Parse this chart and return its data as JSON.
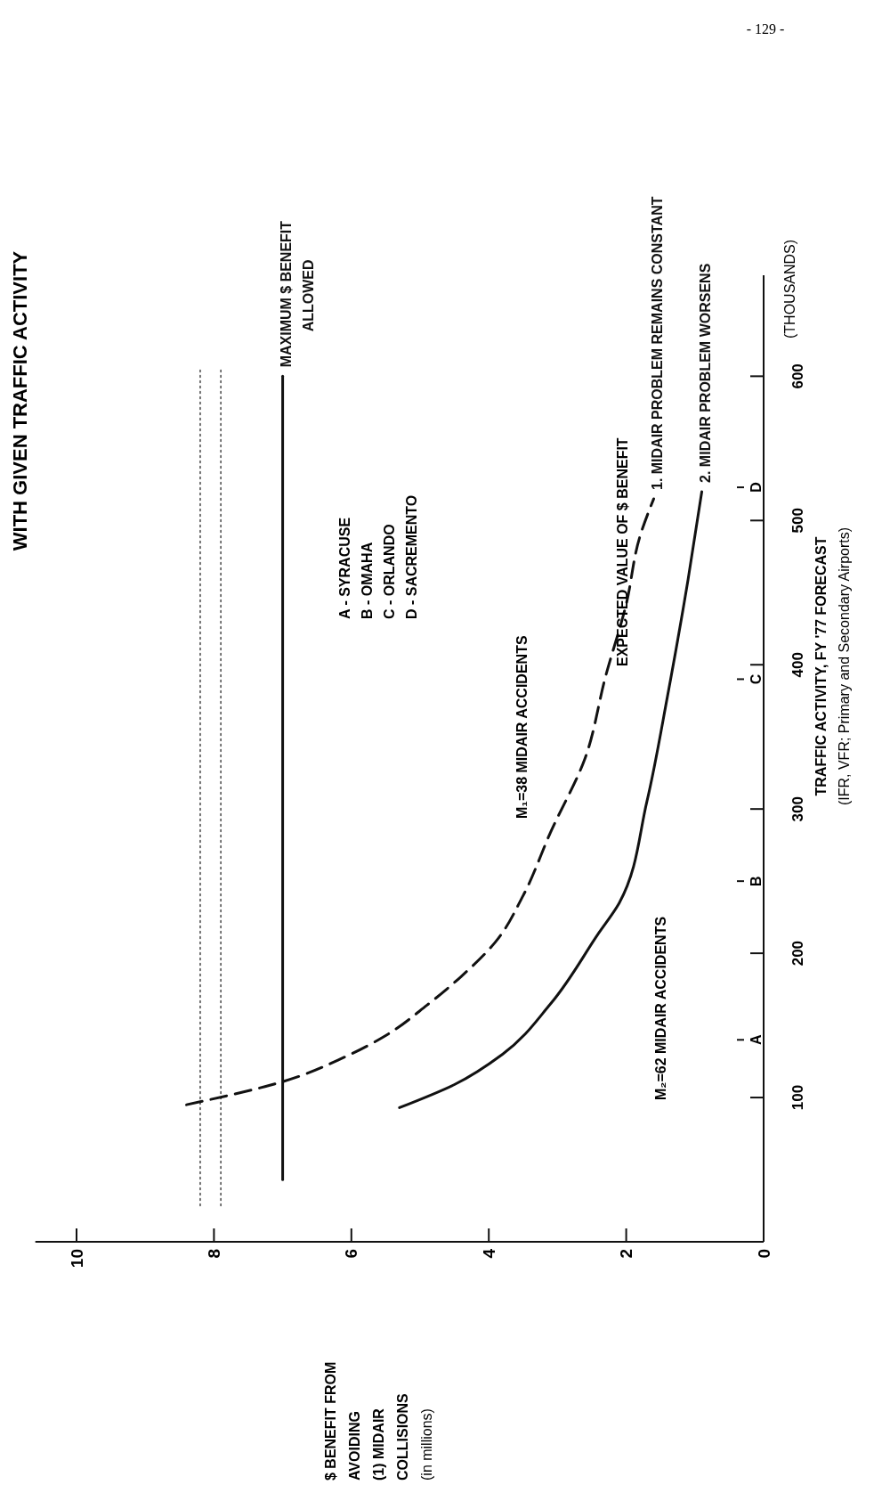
{
  "chart_data": {
    "type": "line",
    "title": "WITH GIVEN TRAFFIC ACTIVITY",
    "ylabel": "TRAFFIC ACTIVITY, FY '77 FORECAST\n(IFR, VFR; Primary and Secondary Airports)",
    "xlim": [
      10.6,
      0
    ],
    "ylim": [
      0,
      670
    ],
    "xticks": [
      10,
      8,
      6,
      4,
      2,
      0
    ],
    "yticks": [
      100,
      200,
      300,
      400,
      500,
      600
    ],
    "series": [
      {
        "color": "#444444",
        "line_style": "dotted",
        "x": [
          8.2,
          8.2
        ],
        "values": [
          25,
          605
        ]
      },
      {
        "color": "#444444",
        "line_style": "dotted",
        "x": [
          7.9,
          7.9
        ],
        "values": [
          25,
          605
        ]
      },
      {
        "name": "MAXIMUM $ BENEFIT\nALLOWED",
        "color": "#111111",
        "line_style": "solid",
        "x": [
          7,
          7
        ],
        "values": [
          43,
          600
        ]
      },
      {
        "name": "1. MIDAIR PROBLEM REMAINS CONSTANT",
        "color": "#111111",
        "line_style": "dashed",
        "x": [
          8.4,
          7.0,
          6.1,
          5.5,
          4.9,
          4.4,
          3.9,
          3.5,
          3.1,
          2.6,
          2.3,
          2.0,
          1.8,
          1.6
        ],
        "values": [
          95,
          111,
          128,
          143,
          164,
          184,
          208,
          240,
          284,
          335,
          392,
          442,
          489,
          515
        ]
      },
      {
        "name": "2. MIDAIR PROBLEM WORSENS",
        "color": "#111111",
        "line_style": "solid",
        "x": [
          5.3,
          4.5,
          3.8,
          3.1,
          2.4,
          2.1,
          1.7,
          1.4,
          1.1,
          0.9
        ],
        "values": [
          93,
          109,
          130,
          165,
          214,
          235,
          305,
          378,
          459,
          520
        ]
      }
    ],
    "annotations": [
      "- 129 -",
      "A - SYRACUSE",
      "B - OMAHA",
      "C - ORLANDO",
      "D - SACREMENTO",
      "M₁=38 MIDAIR ACCIDENTS",
      "M₂=62 MIDAIR ACCIDENTS",
      "EXPECTED VALUE OF $ BENEFIT",
      "(THOUSANDS)",
      "$ BENEFIT FROM\nAVOIDING\n(1) MIDAIR\nCOLLISIONS\n(in millions)"
    ],
    "ref_lines": [
      {
        "axis": "y",
        "value": 140,
        "label": "A"
      },
      {
        "axis": "y",
        "value": 250,
        "label": "B"
      },
      {
        "axis": "y",
        "value": 390,
        "label": "C"
      },
      {
        "axis": "y",
        "value": 523,
        "label": "D"
      }
    ]
  }
}
